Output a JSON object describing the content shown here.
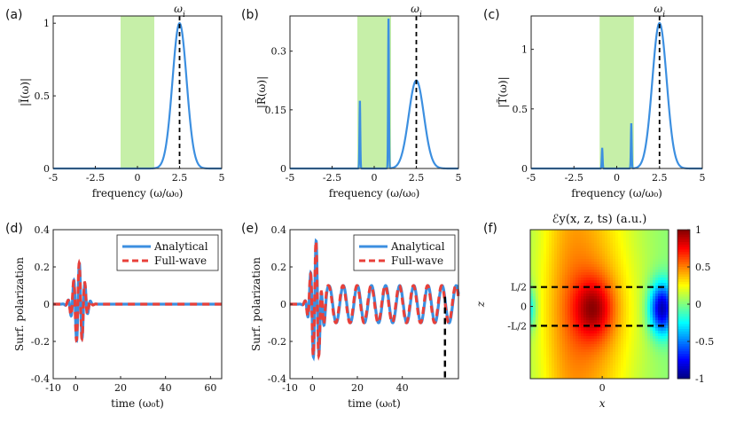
{
  "chart_data": [
    {
      "id": "a",
      "panel_label": "(a)",
      "type": "line",
      "xlabel": "frequency (ω/ω₀)",
      "ylabel": "|Ĩ(ω)|",
      "xlim": [
        -5,
        5
      ],
      "ylim": [
        0,
        1.05
      ],
      "xticks": [
        -5,
        -2.5,
        0,
        2.5,
        5
      ],
      "xtick_labels": [
        "-5",
        "-2.5",
        "0",
        "2.5",
        "5"
      ],
      "yticks": [
        0,
        0.5,
        1
      ],
      "ytick_labels": [
        "0",
        "0.5",
        "1"
      ],
      "shaded_band": [
        -1,
        1
      ],
      "vline": {
        "x": 2.5,
        "label": "ωi"
      },
      "series": [
        {
          "name": "spectrum",
          "color": "#3c8fe0",
          "peaks": [
            {
              "center": 2.5,
              "amp": 1.0,
              "width": 0.42
            }
          ]
        }
      ]
    },
    {
      "id": "b",
      "panel_label": "(b)",
      "type": "line",
      "xlabel": "frequency (ω/ω₀)",
      "ylabel": "|R̃(ω)|",
      "xlim": [
        -5,
        5
      ],
      "ylim": [
        0,
        0.39
      ],
      "xticks": [
        -5,
        -2.5,
        0,
        2.5,
        5
      ],
      "xtick_labels": [
        "-5",
        "-2.5",
        "0",
        "2.5",
        "5"
      ],
      "yticks": [
        0,
        0.15,
        0.3
      ],
      "ytick_labels": [
        "0",
        "0.15",
        "0.3"
      ],
      "shaded_band": [
        -1,
        1
      ],
      "vline": {
        "x": 2.5,
        "label": "ωi"
      },
      "series": [
        {
          "name": "spectrum",
          "color": "#3c8fe0",
          "peaks": [
            {
              "center": 2.5,
              "amp": 0.225,
              "width": 0.45
            },
            {
              "center": -0.85,
              "amp": 0.175,
              "width": 0.025
            },
            {
              "center": 0.85,
              "amp": 0.39,
              "width": 0.025
            }
          ]
        }
      ]
    },
    {
      "id": "c",
      "panel_label": "(c)",
      "type": "line",
      "xlabel": "frequency (ω/ω₀)",
      "ylabel": "|T̃(ω)|",
      "xlim": [
        -5,
        5
      ],
      "ylim": [
        0,
        1.28
      ],
      "xticks": [
        -5,
        -2.5,
        0,
        2.5,
        5
      ],
      "xtick_labels": [
        "-5",
        "-2.5",
        "0",
        "2.5",
        "5"
      ],
      "yticks": [
        0,
        0.5,
        1
      ],
      "ytick_labels": [
        "0",
        "0.5",
        "1"
      ],
      "shaded_band": [
        -1,
        1
      ],
      "vline": {
        "x": 2.5,
        "label": "ωi"
      },
      "series": [
        {
          "name": "spectrum",
          "color": "#3c8fe0",
          "peaks": [
            {
              "center": 2.5,
              "amp": 1.22,
              "width": 0.42
            },
            {
              "center": -0.85,
              "amp": 0.17,
              "width": 0.025
            },
            {
              "center": 0.85,
              "amp": 0.38,
              "width": 0.025
            }
          ]
        }
      ]
    },
    {
      "id": "d",
      "panel_label": "(d)",
      "type": "line",
      "xlabel": "time (ω₀t)",
      "ylabel": "Surf. polarization",
      "xlim": [
        -10,
        65
      ],
      "ylim": [
        -0.4,
        0.4
      ],
      "xticks": [
        -10,
        0,
        20,
        40,
        60
      ],
      "xtick_labels": [
        "-10",
        "0",
        "20",
        "40",
        "60"
      ],
      "yticks": [
        -0.4,
        -0.2,
        0,
        0.2,
        0.4
      ],
      "ytick_labels": [
        "-0.4",
        "-0.2",
        "0",
        "0.2",
        "0.4"
      ],
      "legend": [
        "Analytical",
        "Full-wave"
      ],
      "legend_position": "top-right",
      "signal": {
        "pulse_center": 1.5,
        "pulse_width": 4.5,
        "pulse_amp": 0.22,
        "carrier": 2.5,
        "residual_amp": 0.0,
        "residual_freq": 0.85
      },
      "series": [
        {
          "name": "Analytical",
          "color": "#3c8fe0",
          "style": "solid"
        },
        {
          "name": "Full-wave",
          "color": "#e8403a",
          "style": "dashed"
        }
      ]
    },
    {
      "id": "e",
      "panel_label": "(e)",
      "type": "line",
      "xlabel": "time (ω₀t)",
      "ylabel": "Surf. polarization",
      "xlim": [
        -10,
        65
      ],
      "ylim": [
        -0.4,
        0.4
      ],
      "xticks": [
        -10,
        0,
        20,
        40
      ],
      "xtick_labels": [
        "-10",
        "0",
        "20",
        "40"
      ],
      "yticks": [
        -0.4,
        -0.2,
        0,
        0.2,
        0.4
      ],
      "ytick_labels": [
        "-0.4",
        "-0.2",
        "0",
        "0.2",
        "0.4"
      ],
      "legend": [
        "Analytical",
        "Full-wave"
      ],
      "legend_position": "top-right",
      "vline": {
        "x": 59,
        "label": ""
      },
      "signal": {
        "pulse_center": 1.5,
        "pulse_width": 4.0,
        "pulse_amp": 0.33,
        "carrier": 2.5,
        "residual_amp": 0.1,
        "residual_freq": 1.0
      },
      "series": [
        {
          "name": "Analytical",
          "color": "#3c8fe0",
          "style": "solid"
        },
        {
          "name": "Full-wave",
          "color": "#e8403a",
          "style": "dashed"
        }
      ]
    },
    {
      "id": "f",
      "panel_label": "(f)",
      "type": "heatmap",
      "title": "ℰy(x, z, ts) (a.u.)",
      "xlabel": "x",
      "ylabel": "z",
      "xtick_labels": [
        "0"
      ],
      "ytick_labels": [
        "L/2",
        "0",
        "-L/2"
      ],
      "colorbar": {
        "ticks": [
          1,
          0.5,
          0,
          -0.5,
          -1
        ],
        "tick_labels": [
          "1",
          "0.5",
          "0",
          "-0.5",
          "-1"
        ],
        "range": [
          -1,
          1
        ]
      },
      "hlines": [
        "L/2",
        "-L/2"
      ],
      "colormap": "jet"
    }
  ]
}
